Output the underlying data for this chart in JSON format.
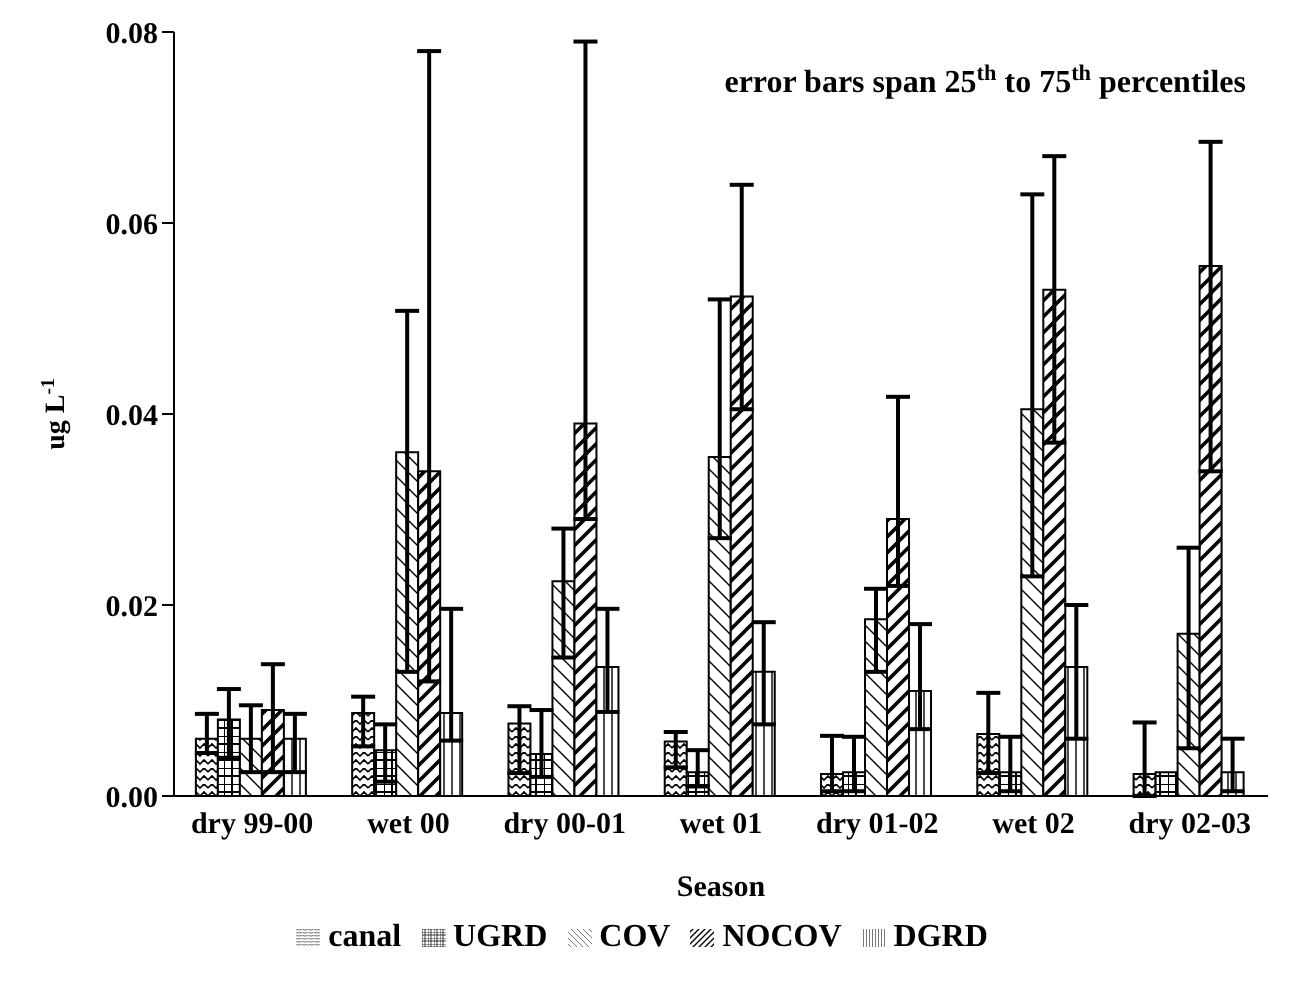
{
  "chart_data": {
    "type": "bar",
    "xlabel": "Season",
    "ylabel": "ug L$^{-1}$",
    "annotations": [
      "error bars span 25$^{th}$ to 75$^{th}$ percentiles"
    ],
    "categories": [
      "dry 99-00",
      "wet 00",
      "dry 00-01",
      "wet 01",
      "dry 01-02",
      "wet 02",
      "dry 02-03"
    ],
    "series": [
      {
        "name": "canal",
        "color": "#000000",
        "values": [
          0.006,
          0.0087,
          0.0076,
          0.0057,
          0.0023,
          0.0065,
          0.0023
        ],
        "errors": [
          [
            0.0045,
            0.0086
          ],
          [
            0.0052,
            0.0104
          ],
          [
            0.0024,
            0.0094
          ],
          [
            0.003,
            0.0067
          ],
          [
            0.0005,
            0.0063
          ],
          [
            0.0024,
            0.0108
          ],
          [
            0.0,
            0.0077
          ]
        ]
      },
      {
        "name": "UGRD",
        "color": "#000000",
        "values": [
          0.008,
          0.0048,
          0.0044,
          0.0025,
          0.0025,
          0.0025,
          0.0025
        ],
        "errors": [
          [
            0.004,
            0.0112
          ],
          [
            0.0015,
            0.0075
          ],
          [
            0.002,
            0.009
          ],
          [
            0.001,
            0.0048
          ],
          [
            0.0005,
            0.0062
          ],
          [
            0.0005,
            0.0062
          ],
          null
        ]
      },
      {
        "name": "COV",
        "color": "#000000",
        "values": [
          0.006,
          0.036,
          0.0225,
          0.0355,
          0.0185,
          0.0405,
          0.017
        ],
        "errors": [
          [
            0.0025,
            0.0095
          ],
          [
            0.013,
            0.0508
          ],
          [
            0.0145,
            0.028
          ],
          [
            0.027,
            0.052
          ],
          [
            0.013,
            0.0217
          ],
          [
            0.023,
            0.063
          ],
          [
            0.005,
            0.026
          ]
        ]
      },
      {
        "name": "NOCOV",
        "color": "#000000",
        "values": [
          0.009,
          0.034,
          0.039,
          0.0523,
          0.029,
          0.053,
          0.0555
        ],
        "errors": [
          [
            0.0025,
            0.0138
          ],
          [
            0.012,
            0.078
          ],
          [
            0.029,
            0.079
          ],
          [
            0.0405,
            0.064
          ],
          [
            0.022,
            0.0418
          ],
          [
            0.037,
            0.067
          ],
          [
            0.034,
            0.0685
          ]
        ]
      },
      {
        "name": "DGRD",
        "color": "#000000",
        "values": [
          0.006,
          0.0087,
          0.0135,
          0.013,
          0.011,
          0.0135,
          0.0025
        ],
        "errors": [
          [
            0.0025,
            0.0086
          ],
          [
            0.0058,
            0.0196
          ],
          [
            0.0088,
            0.0196
          ],
          [
            0.0075,
            0.0182
          ],
          [
            0.007,
            0.018
          ],
          [
            0.006,
            0.02
          ],
          [
            0.0005,
            0.006
          ]
        ]
      }
    ],
    "ylim": [
      0,
      0.08
    ],
    "yticks": [
      {
        "value": 0,
        "label": "0.00"
      },
      {
        "value": 0.02,
        "label": "0.02"
      },
      {
        "value": 0.04,
        "label": "0.04"
      },
      {
        "value": 0.06,
        "label": "0.06"
      },
      {
        "value": 0.08,
        "label": "0.08"
      }
    ],
    "grid": false,
    "legend": "bottom"
  }
}
